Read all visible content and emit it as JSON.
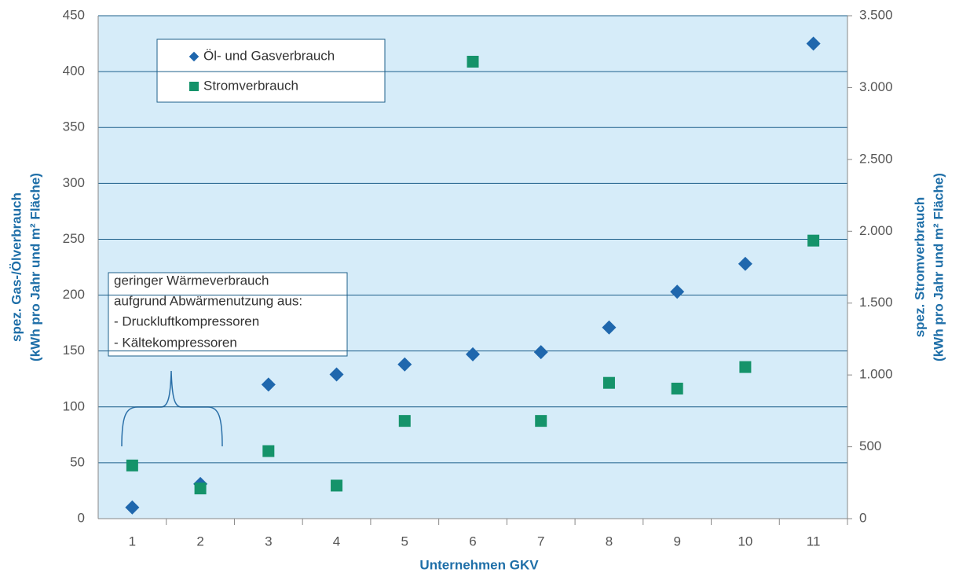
{
  "chart_data": {
    "type": "scatter",
    "x_label": "Unternehmen GKV",
    "y_label": [
      "spez. Gas-/Ölverbrauch",
      "(kWh pro Jahr und  m² Fläche)"
    ],
    "y2_label": [
      "spez. Stromverbrauch",
      "(kWh pro Jahr und  m² Fläche)"
    ],
    "categories": [
      "1",
      "2",
      "3",
      "4",
      "5",
      "6",
      "7",
      "8",
      "9",
      "10",
      "11"
    ],
    "series": [
      {
        "name": "Öl- und Gasverbrauch",
        "color": "#1f67ad",
        "marker": "diamond",
        "values": [
          10,
          31,
          120,
          129,
          138,
          147,
          149,
          171,
          203,
          228,
          425
        ]
      },
      {
        "name": "Stromverbrauch",
        "color": "#15936a",
        "marker": "square",
        "axis": "y2",
        "values": [
          370,
          210,
          470,
          230,
          680,
          3180,
          680,
          945,
          905,
          1055,
          1935
        ]
      }
    ],
    "ylim": [
      0,
      450
    ],
    "yticks": [
      0,
      50,
      100,
      150,
      200,
      250,
      300,
      350,
      400,
      450
    ],
    "y2lim": [
      0,
      3500
    ],
    "y2ticks": [
      0,
      500,
      {
        "value": 1000,
        "label": "1.000"
      },
      {
        "value": 1500,
        "label": "1.500"
      },
      {
        "value": 2000,
        "label": "2.000"
      },
      {
        "value": 2500,
        "label": "2.500"
      },
      {
        "value": 3000,
        "label": "3.000"
      },
      {
        "value": 3500,
        "label": "3.500"
      }
    ],
    "grid": true,
    "annotation": [
      "geringer Wärmeverbrauch",
      "aufgrund Abwärmenutzung aus:",
      "- Druckluftkompressoren",
      "- Kältekompressoren"
    ]
  }
}
